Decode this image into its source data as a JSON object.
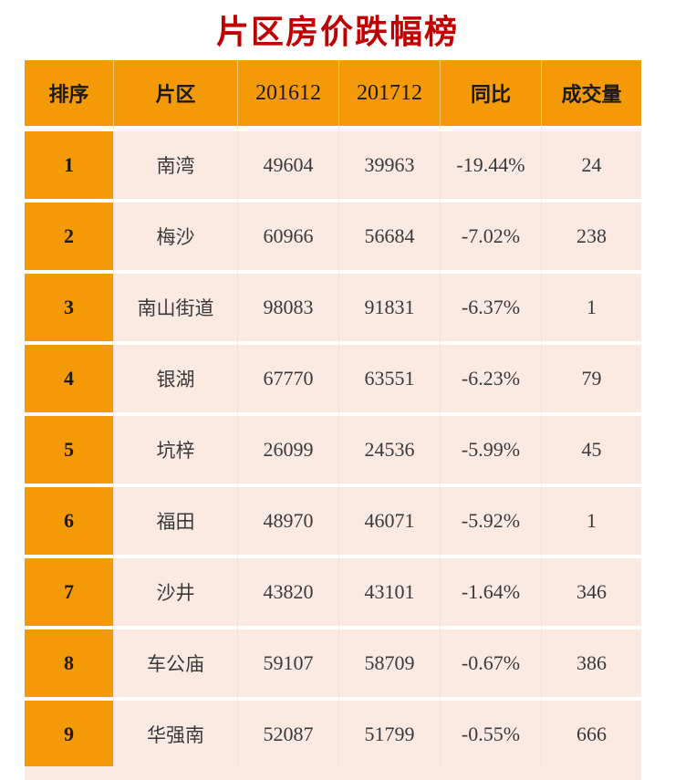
{
  "title": "片区房价跌幅榜",
  "headers": [
    "排序",
    "片区",
    "201612",
    "201712",
    "同比",
    "成交量"
  ],
  "rows": [
    {
      "rank": "1",
      "area": "南湾",
      "p2016": "49604",
      "p2017": "39963",
      "yoy": "-19.44%",
      "volume": "24"
    },
    {
      "rank": "2",
      "area": "梅沙",
      "p2016": "60966",
      "p2017": "56684",
      "yoy": "-7.02%",
      "volume": "238"
    },
    {
      "rank": "3",
      "area": "南山街道",
      "p2016": "98083",
      "p2017": "91831",
      "yoy": "-6.37%",
      "volume": "1"
    },
    {
      "rank": "4",
      "area": "银湖",
      "p2016": "67770",
      "p2017": "63551",
      "yoy": "-6.23%",
      "volume": "79"
    },
    {
      "rank": "5",
      "area": "坑梓",
      "p2016": "26099",
      "p2017": "24536",
      "yoy": "-5.99%",
      "volume": "45"
    },
    {
      "rank": "6",
      "area": "福田",
      "p2016": "48970",
      "p2017": "46071",
      "yoy": "-5.92%",
      "volume": "1"
    },
    {
      "rank": "7",
      "area": "沙井",
      "p2016": "43820",
      "p2017": "43101",
      "yoy": "-1.64%",
      "volume": "346"
    },
    {
      "rank": "8",
      "area": "车公庙",
      "p2016": "59107",
      "p2017": "58709",
      "yoy": "-0.67%",
      "volume": "386"
    },
    {
      "rank": "9",
      "area": "华强南",
      "p2016": "52087",
      "p2017": "51799",
      "yoy": "-0.55%",
      "volume": "666"
    }
  ],
  "colors": {
    "title": "#c00000",
    "header_bg": "#f39a06",
    "row_bg": "#fbeae2"
  }
}
